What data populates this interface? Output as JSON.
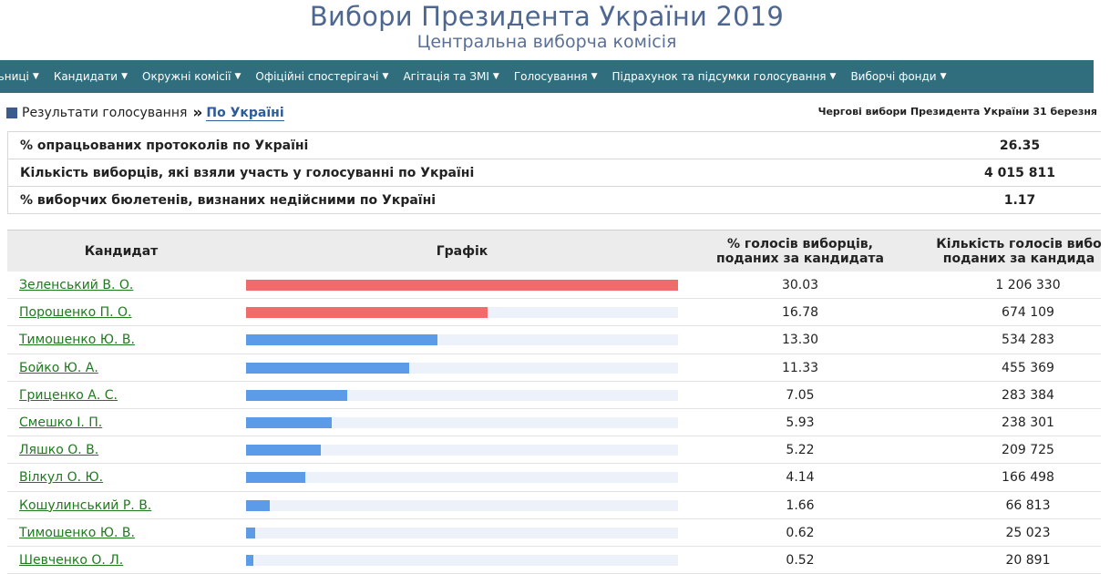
{
  "header": {
    "title": "Вибори Президента України 2019",
    "subtitle": "Центральна виборча комісія"
  },
  "nav": {
    "items": [
      {
        "label": "льниці"
      },
      {
        "label": "Кандидати"
      },
      {
        "label": "Окружні комісії"
      },
      {
        "label": "Офіційні спостерігачі"
      },
      {
        "label": "Агітація та ЗМІ"
      },
      {
        "label": "Голосування"
      },
      {
        "label": "Підрахунок та підсумки голосування"
      },
      {
        "label": "Виборчі фонди"
      }
    ]
  },
  "breadcrumb": {
    "section": "Результати голосування",
    "separator": "»",
    "current": "По Україні",
    "election": "Чергові вибори Президента України 31 березня"
  },
  "summary": [
    {
      "label": "% опрацьованих протоколів по Україні",
      "value": "26.35"
    },
    {
      "label": "Кількість виборців, які взяли участь у голосуванні по Україні",
      "value": "4 015 811"
    },
    {
      "label": "% виборчих бюлетенів, визнаних недійсними по Україні",
      "value": "1.17"
    }
  ],
  "results": {
    "headers": {
      "candidate": "Кандидат",
      "graph": "Графік",
      "pct_line1": "% голосів виборців,",
      "pct_line2": "поданих за кандидата",
      "count_line1": "Кількість голосів вибо",
      "count_line2": "поданих за кандида"
    },
    "colors": {
      "top": "#f26b6b",
      "other": "#5b9be8"
    },
    "rows": [
      {
        "name": "Зеленський В. О.",
        "pct": "30.03",
        "count": "1 206 330",
        "share": 1.0,
        "color": "top"
      },
      {
        "name": "Порошенко П. О.",
        "pct": "16.78",
        "count": "674 109",
        "share": 0.5588,
        "color": "top"
      },
      {
        "name": "Тимошенко Ю. В.",
        "pct": "13.30",
        "count": "534 283",
        "share": 0.4429,
        "color": "other"
      },
      {
        "name": "Бойко Ю. А.",
        "pct": "11.33",
        "count": "455 369",
        "share": 0.3773,
        "color": "other"
      },
      {
        "name": "Гриценко А. С.",
        "pct": "7.05",
        "count": "283 384",
        "share": 0.2348,
        "color": "other"
      },
      {
        "name": "Смешко І. П.",
        "pct": "5.93",
        "count": "238 301",
        "share": 0.1975,
        "color": "other"
      },
      {
        "name": "Ляшко О. В.",
        "pct": "5.22",
        "count": "209 725",
        "share": 0.1738,
        "color": "other"
      },
      {
        "name": "Вілкул О. Ю.",
        "pct": "4.14",
        "count": "166 498",
        "share": 0.1379,
        "color": "other"
      },
      {
        "name": "Кошулинський Р. В.",
        "pct": "1.66",
        "count": "66 813",
        "share": 0.0553,
        "color": "other"
      },
      {
        "name": "Тимошенко Ю. В.",
        "pct": "0.62",
        "count": "25 023",
        "share": 0.0206,
        "color": "other"
      },
      {
        "name": "Шевченко О. Л.",
        "pct": "0.52",
        "count": "20 891",
        "share": 0.0173,
        "color": "other"
      }
    ]
  }
}
